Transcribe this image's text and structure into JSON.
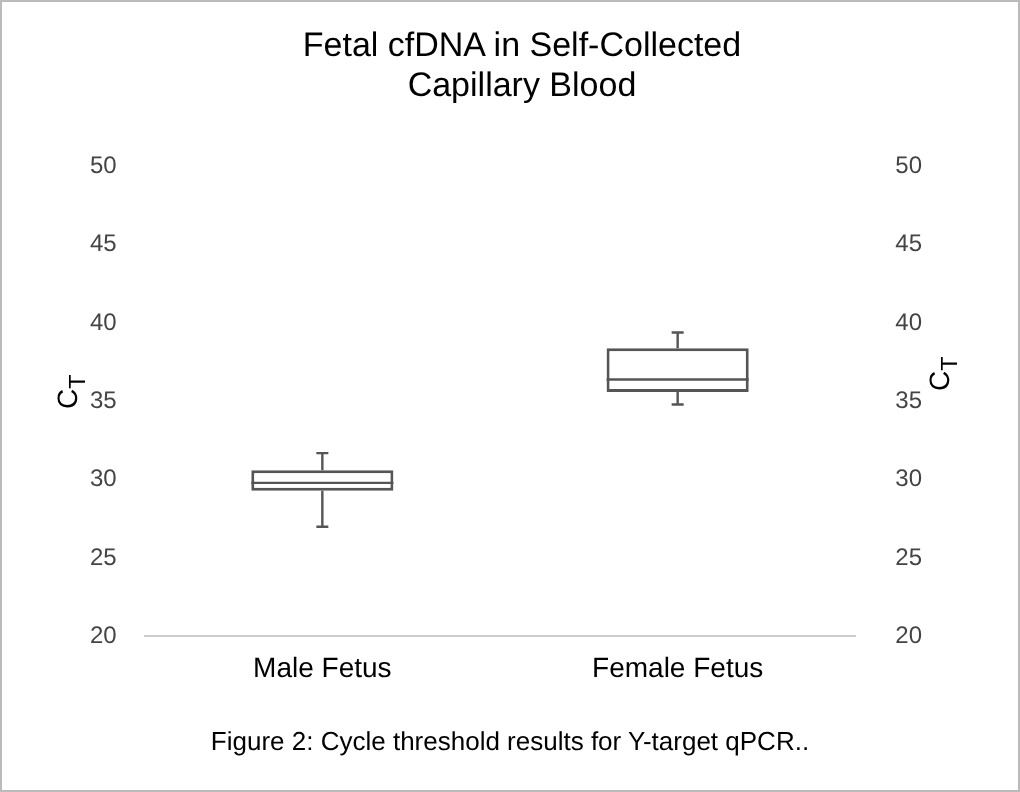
{
  "chart_data": {
    "type": "box",
    "title": "Fetal cfDNA in Self-Collected Capillary Blood",
    "ylabel": "C$_{T}$",
    "y2label": "C$_{T}$",
    "categories": [
      "Male Fetus",
      "Female Fetus"
    ],
    "boxes": [
      {
        "low": 27.0,
        "q1": 29.3,
        "median": 29.8,
        "q3": 30.6,
        "high": 31.7
      },
      {
        "low": 34.8,
        "q1": 35.6,
        "median": 36.4,
        "q3": 38.4,
        "high": 39.4
      }
    ],
    "ylim": [
      20,
      50
    ],
    "yticks": [
      20,
      25,
      30,
      35,
      40,
      45,
      50
    ],
    "y2lim": [
      20,
      50
    ],
    "y2ticks": [
      20,
      25,
      30,
      35,
      40,
      45,
      50
    ],
    "grid": false,
    "annotations": [
      "Figure 2: Cycle threshold results for Y-target qPCR.."
    ]
  }
}
